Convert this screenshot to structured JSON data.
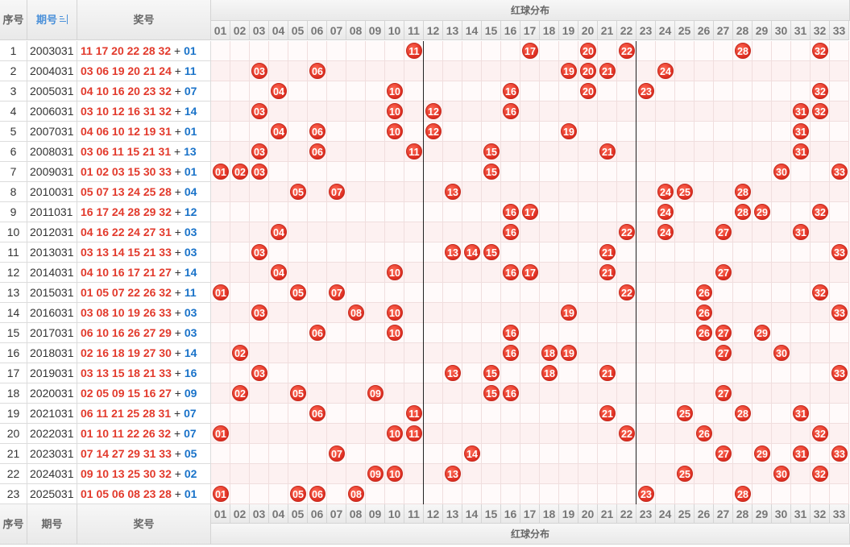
{
  "header": {
    "seq_label": "序号",
    "issue_label": "期号",
    "award_label": "奖号",
    "zone_label": "红球分布",
    "sort_icon": "sort-icon"
  },
  "footer": {
    "seq_label": "序号",
    "issue_label": "期号",
    "award_label": "奖号",
    "zone_label": "红球分布"
  },
  "plus_sign": "+",
  "numbers": [
    "01",
    "02",
    "03",
    "04",
    "05",
    "06",
    "07",
    "08",
    "09",
    "10",
    "11",
    "12",
    "13",
    "14",
    "15",
    "16",
    "17",
    "18",
    "19",
    "20",
    "21",
    "22",
    "23",
    "24",
    "25",
    "26",
    "27",
    "28",
    "29",
    "30",
    "31",
    "32",
    "33"
  ],
  "colors": {
    "red": "#e23a2c",
    "blue": "#1a73c9",
    "zone_divider": "#222222"
  },
  "zone_dividers_after": [
    "11",
    "22"
  ],
  "rows": [
    {
      "seq": "1",
      "issue": "2003031",
      "reds": [
        "11",
        "17",
        "20",
        "22",
        "28",
        "32"
      ],
      "blue": "01"
    },
    {
      "seq": "2",
      "issue": "2004031",
      "reds": [
        "03",
        "06",
        "19",
        "20",
        "21",
        "24"
      ],
      "blue": "11"
    },
    {
      "seq": "3",
      "issue": "2005031",
      "reds": [
        "04",
        "10",
        "16",
        "20",
        "23",
        "32"
      ],
      "blue": "07"
    },
    {
      "seq": "4",
      "issue": "2006031",
      "reds": [
        "03",
        "10",
        "12",
        "16",
        "31",
        "32"
      ],
      "blue": "14"
    },
    {
      "seq": "5",
      "issue": "2007031",
      "reds": [
        "04",
        "06",
        "10",
        "12",
        "19",
        "31"
      ],
      "blue": "01"
    },
    {
      "seq": "6",
      "issue": "2008031",
      "reds": [
        "03",
        "06",
        "11",
        "15",
        "21",
        "31"
      ],
      "blue": "13"
    },
    {
      "seq": "7",
      "issue": "2009031",
      "reds": [
        "01",
        "02",
        "03",
        "15",
        "30",
        "33"
      ],
      "blue": "01"
    },
    {
      "seq": "8",
      "issue": "2010031",
      "reds": [
        "05",
        "07",
        "13",
        "24",
        "25",
        "28"
      ],
      "blue": "04"
    },
    {
      "seq": "9",
      "issue": "2011031",
      "reds": [
        "16",
        "17",
        "24",
        "28",
        "29",
        "32"
      ],
      "blue": "12"
    },
    {
      "seq": "10",
      "issue": "2012031",
      "reds": [
        "04",
        "16",
        "22",
        "24",
        "27",
        "31"
      ],
      "blue": "03"
    },
    {
      "seq": "11",
      "issue": "2013031",
      "reds": [
        "03",
        "13",
        "14",
        "15",
        "21",
        "33"
      ],
      "blue": "03"
    },
    {
      "seq": "12",
      "issue": "2014031",
      "reds": [
        "04",
        "10",
        "16",
        "17",
        "21",
        "27"
      ],
      "blue": "14"
    },
    {
      "seq": "13",
      "issue": "2015031",
      "reds": [
        "01",
        "05",
        "07",
        "22",
        "26",
        "32"
      ],
      "blue": "11"
    },
    {
      "seq": "14",
      "issue": "2016031",
      "reds": [
        "03",
        "08",
        "10",
        "19",
        "26",
        "33"
      ],
      "blue": "03"
    },
    {
      "seq": "15",
      "issue": "2017031",
      "reds": [
        "06",
        "10",
        "16",
        "26",
        "27",
        "29"
      ],
      "blue": "03"
    },
    {
      "seq": "16",
      "issue": "2018031",
      "reds": [
        "02",
        "16",
        "18",
        "19",
        "27",
        "30"
      ],
      "blue": "14"
    },
    {
      "seq": "17",
      "issue": "2019031",
      "reds": [
        "03",
        "13",
        "15",
        "18",
        "21",
        "33"
      ],
      "blue": "16"
    },
    {
      "seq": "18",
      "issue": "2020031",
      "reds": [
        "02",
        "05",
        "09",
        "15",
        "16",
        "27"
      ],
      "blue": "09"
    },
    {
      "seq": "19",
      "issue": "2021031",
      "reds": [
        "06",
        "11",
        "21",
        "25",
        "28",
        "31"
      ],
      "blue": "07"
    },
    {
      "seq": "20",
      "issue": "2022031",
      "reds": [
        "01",
        "10",
        "11",
        "22",
        "26",
        "32"
      ],
      "blue": "07"
    },
    {
      "seq": "21",
      "issue": "2023031",
      "reds": [
        "07",
        "14",
        "27",
        "29",
        "31",
        "33"
      ],
      "blue": "05"
    },
    {
      "seq": "22",
      "issue": "2024031",
      "reds": [
        "09",
        "10",
        "13",
        "25",
        "30",
        "32"
      ],
      "blue": "02"
    },
    {
      "seq": "23",
      "issue": "2025031",
      "reds": [
        "01",
        "05",
        "06",
        "08",
        "23",
        "28"
      ],
      "blue": "01"
    }
  ]
}
